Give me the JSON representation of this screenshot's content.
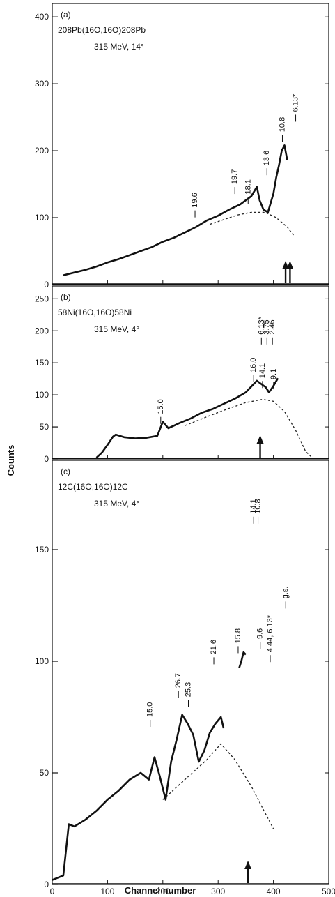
{
  "chart_data": {
    "type": "line",
    "xlabel": "Channel number",
    "ylabel": "Counts",
    "xlim": [
      0,
      500
    ],
    "x_ticks": [
      "0",
      "100",
      "200",
      "300",
      "400",
      "500"
    ],
    "grid": false,
    "panels": [
      {
        "tag": "(a)",
        "reaction": "208Pb(16O,16O)208Pb",
        "conditions": "315 MeV, 14°",
        "ylim": [
          0,
          420
        ],
        "y_ticks": [
          0,
          100,
          200,
          300,
          400
        ],
        "series": [
          {
            "kind": "spectrum",
            "points": [
              [
                20,
                14
              ],
              [
                40,
                18
              ],
              [
                60,
                22
              ],
              [
                80,
                27
              ],
              [
                100,
                33
              ],
              [
                120,
                38
              ],
              [
                140,
                44
              ],
              [
                160,
                50
              ],
              [
                180,
                56
              ],
              [
                200,
                64
              ],
              [
                220,
                70
              ],
              [
                240,
                78
              ],
              [
                260,
                86
              ],
              [
                280,
                96
              ],
              [
                300,
                103
              ],
              [
                320,
                112
              ],
              [
                340,
                120
              ],
              [
                360,
                132
              ],
              [
                370,
                146
              ],
              [
                375,
                126
              ],
              [
                382,
                112
              ],
              [
                390,
                108
              ],
              [
                400,
                136
              ],
              [
                405,
                160
              ],
              [
                410,
                178
              ],
              [
                415,
                200
              ],
              [
                420,
                208
              ],
              [
                425,
                186
              ]
            ]
          },
          {
            "kind": "background",
            "points": [
              [
                285,
                90
              ],
              [
                310,
                97
              ],
              [
                335,
                104
              ],
              [
                360,
                108
              ],
              [
                385,
                108
              ],
              [
                405,
                100
              ],
              [
                425,
                86
              ],
              [
                438,
                72
              ]
            ]
          }
        ],
        "peak_labels": [
          {
            "text": "19.6",
            "x": 262,
            "y": 115
          },
          {
            "text": "19.7",
            "x": 334,
            "y": 150
          },
          {
            "text": "18.1",
            "x": 358,
            "y": 135
          },
          {
            "text": "13.6",
            "x": 392,
            "y": 178
          },
          {
            "text": "10.8",
            "x": 420,
            "y": 228
          },
          {
            "text": "6.13*",
            "x": 444,
            "y": 258
          }
        ],
        "arrows": [
          422,
          430
        ]
      },
      {
        "tag": "(b)",
        "reaction": "58Ni(16O,16O)58Ni",
        "conditions": "315 MeV, 4°",
        "ylim": [
          0,
          270
        ],
        "y_ticks": [
          0,
          50,
          100,
          150,
          200,
          250
        ],
        "series": [
          {
            "kind": "spectrum",
            "points": [
              [
                80,
                2
              ],
              [
                90,
                10
              ],
              [
                100,
                22
              ],
              [
                110,
                35
              ],
              [
                115,
                38
              ],
              [
                130,
                34
              ],
              [
                150,
                32
              ],
              [
                170,
                33
              ],
              [
                190,
                36
              ],
              [
                200,
                58
              ],
              [
                210,
                48
              ],
              [
                230,
                56
              ],
              [
                250,
                63
              ],
              [
                270,
                72
              ],
              [
                290,
                78
              ],
              [
                310,
                86
              ],
              [
                330,
                94
              ],
              [
                350,
                104
              ],
              [
                360,
                113
              ],
              [
                370,
                122
              ],
              [
                378,
                117
              ],
              [
                386,
                112
              ],
              [
                392,
                104
              ],
              [
                400,
                114
              ],
              [
                408,
                126
              ]
            ]
          },
          {
            "kind": "background",
            "points": [
              [
                240,
                52
              ],
              [
                280,
                66
              ],
              [
                320,
                79
              ],
              [
                350,
                88
              ],
              [
                380,
                93
              ],
              [
                400,
                90
              ],
              [
                420,
                74
              ],
              [
                440,
                45
              ],
              [
                458,
                12
              ],
              [
                470,
                2
              ]
            ]
          }
        ],
        "peak_labels": [
          {
            "text": "15.0",
            "x": 200,
            "y": 70
          },
          {
            "text": "16.0",
            "x": 368,
            "y": 135
          },
          {
            "text": "14.1",
            "x": 384,
            "y": 126
          },
          {
            "text": "9.1",
            "x": 404,
            "y": 124
          },
          {
            "text": "6.13*",
            "x": 382,
            "y": 194
          },
          {
            "text": "3.75",
            "x": 392,
            "y": 194
          },
          {
            "text": "2.46",
            "x": 402,
            "y": 194
          }
        ],
        "arrows": [
          376
        ]
      },
      {
        "tag": "(c)",
        "reaction": "12C(16O,16O)12C",
        "conditions": "315 MeV, 4°",
        "ylim": [
          0,
          190
        ],
        "y_ticks": [
          0,
          50,
          100,
          150
        ],
        "series": [
          {
            "kind": "spectrum",
            "points": [
              [
                0,
                2
              ],
              [
                20,
                4
              ],
              [
                30,
                27
              ],
              [
                40,
                26
              ],
              [
                60,
                29
              ],
              [
                80,
                33
              ],
              [
                100,
                38
              ],
              [
                120,
                42
              ],
              [
                140,
                47
              ],
              [
                160,
                50
              ],
              [
                175,
                47
              ],
              [
                185,
                57
              ],
              [
                195,
                48
              ],
              [
                205,
                38
              ],
              [
                215,
                55
              ],
              [
                225,
                65
              ],
              [
                235,
                76
              ],
              [
                245,
                72
              ],
              [
                255,
                67
              ],
              [
                265,
                55
              ],
              [
                275,
                60
              ],
              [
                285,
                68
              ],
              [
                295,
                72
              ],
              [
                305,
                75
              ],
              [
                310,
                70
              ]
            ]
          },
          {
            "kind": "spectrum",
            "points": [
              [
                338,
                97
              ],
              [
                342,
                100
              ],
              [
                346,
                104
              ],
              [
                350,
                103
              ]
            ]
          },
          {
            "kind": "background",
            "points": [
              [
                200,
                38
              ],
              [
                240,
                47
              ],
              [
                280,
                56
              ],
              [
                305,
                63
              ],
              [
                330,
                56
              ],
              [
                360,
                44
              ],
              [
                385,
                32
              ],
              [
                400,
                25
              ]
            ]
          }
        ],
        "peak_labels": [
          {
            "text": "15.0",
            "x": 181,
            "y": 75
          },
          {
            "text": "26.7",
            "x": 232,
            "y": 88
          },
          {
            "text": "25.3",
            "x": 250,
            "y": 84
          },
          {
            "text": "21.6",
            "x": 296,
            "y": 103
          },
          {
            "text": "15.8",
            "x": 340,
            "y": 108
          },
          {
            "text": "14.1",
            "x": 368,
            "y": 166
          },
          {
            "text": "10.8",
            "x": 376,
            "y": 166
          },
          {
            "text": "9.6",
            "x": 380,
            "y": 110
          },
          {
            "text": "4.44, 6.13*",
            "x": 398,
            "y": 104
          },
          {
            "text": "g.s.",
            "x": 426,
            "y": 128
          }
        ],
        "arrows": [
          354
        ]
      }
    ]
  }
}
